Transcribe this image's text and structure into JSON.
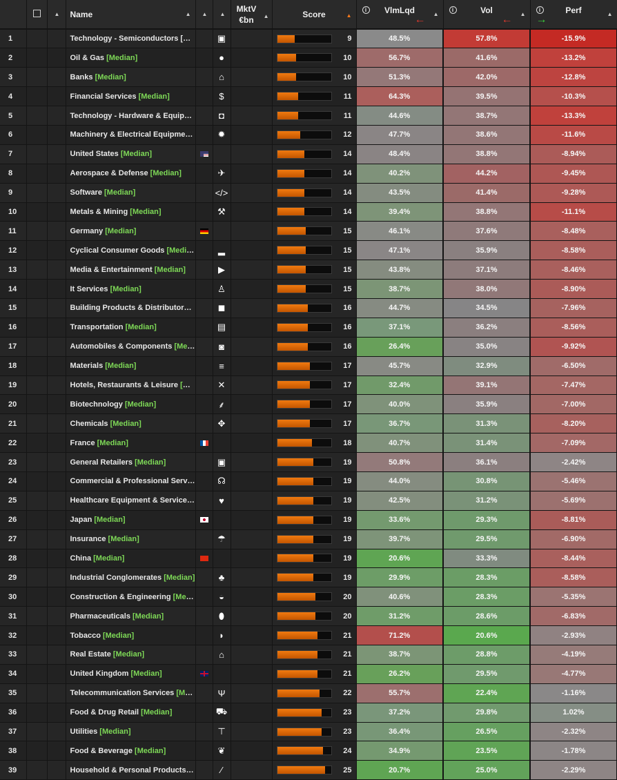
{
  "header": {
    "name": "Name",
    "mktv_line1": "MktV",
    "mktv_line2": "€bn",
    "score": "Score",
    "vimlqd": "VlmLqd",
    "vol": "Vol",
    "perf": "Perf",
    "info_glyph": "i",
    "sort_up": "▲",
    "sort_active": "▲",
    "arrow_left": "←",
    "arrow_right": "→"
  },
  "colors": {
    "red": "#c9302c",
    "green": "#5d9e3d",
    "neutral": "#8a8a8a",
    "median": "#7ed957",
    "score_bar": "#e06b0c"
  },
  "rows": [
    {
      "idx": "1",
      "name": "Technology - Semiconductors [Me…",
      "median": "",
      "flag": "",
      "icon": "chip-icon",
      "glyph": "▣",
      "score": 9,
      "vim": "48.5%",
      "vol": "57.8%",
      "perf": "-15.9%",
      "vimc": "#8a8a8a",
      "volc": "#c23b35",
      "perfc": "#c42a24"
    },
    {
      "idx": "2",
      "name": "Oil & Gas ",
      "median": "[Median]",
      "flag": "",
      "icon": "drop-icon",
      "glyph": "●",
      "score": 10,
      "vim": "56.7%",
      "vol": "41.6%",
      "perf": "-13.2%",
      "vimc": "#9e6b6a",
      "volc": "#9b6a68",
      "perfc": "#c0413c"
    },
    {
      "idx": "3",
      "name": "Banks ",
      "median": "[Median]",
      "flag": "",
      "icon": "bank-icon",
      "glyph": "⌂",
      "score": 10,
      "vim": "51.3%",
      "vol": "42.0%",
      "perf": "-12.8%",
      "vimc": "#947878",
      "volc": "#9d6968",
      "perfc": "#bd4440"
    },
    {
      "idx": "4",
      "name": "Financial Services ",
      "median": "[Median]",
      "flag": "",
      "icon": "piggy-bank-icon",
      "glyph": "$",
      "score": 11,
      "vim": "64.3%",
      "vol": "39.5%",
      "perf": "-10.3%",
      "vimc": "#ab5f5c",
      "volc": "#957373",
      "perfc": "#b5504c"
    },
    {
      "idx": "5",
      "name": "Technology - Hardware & Equipm…",
      "median": "",
      "flag": "",
      "icon": "mouse-icon",
      "glyph": "◘",
      "score": 11,
      "vim": "44.6%",
      "vol": "38.7%",
      "perf": "-13.3%",
      "vimc": "#848c84",
      "volc": "#937676",
      "perfc": "#c0413c"
    },
    {
      "idx": "6",
      "name": "Machinery & Electrical Equipment …",
      "median": "",
      "flag": "",
      "icon": "gear-icon",
      "glyph": "✹",
      "score": 12,
      "vim": "47.7%",
      "vol": "38.6%",
      "perf": "-11.6%",
      "vimc": "#8a8585",
      "volc": "#937676",
      "perfc": "#b94a46"
    },
    {
      "idx": "7",
      "name": "United States ",
      "median": "[Median]",
      "flag": "us",
      "icon": "",
      "glyph": "",
      "score": 14,
      "vim": "48.4%",
      "vol": "38.8%",
      "perf": "-8.94%",
      "vimc": "#8a8484",
      "volc": "#937676",
      "perfc": "#ab5b58"
    },
    {
      "idx": "8",
      "name": "Aerospace & Defense ",
      "median": "[Median]",
      "flag": "",
      "icon": "plane-icon",
      "glyph": "✈",
      "score": 14,
      "vim": "40.2%",
      "vol": "44.2%",
      "perf": "-9.45%",
      "vimc": "#7f927a",
      "volc": "#a26262",
      "perfc": "#ae5754"
    },
    {
      "idx": "9",
      "name": "Software ",
      "median": "[Median]",
      "flag": "",
      "icon": "code-icon",
      "glyph": "</>",
      "score": 14,
      "vim": "43.5%",
      "vol": "41.4%",
      "perf": "-9.28%",
      "vimc": "#848c80",
      "volc": "#9b6a68",
      "perfc": "#ad5956"
    },
    {
      "idx": "10",
      "name": "Metals & Mining ",
      "median": "[Median]",
      "flag": "",
      "icon": "pickaxe-icon",
      "glyph": "⚒",
      "score": 14,
      "vim": "39.4%",
      "vol": "38.8%",
      "perf": "-11.1%",
      "vimc": "#7e9478",
      "volc": "#937676",
      "perfc": "#b74c48"
    },
    {
      "idx": "11",
      "name": "Germany ",
      "median": "[Median]",
      "flag": "de",
      "icon": "",
      "glyph": "",
      "score": 15,
      "vim": "46.1%",
      "vol": "37.6%",
      "perf": "-8.48%",
      "vimc": "#888a85",
      "volc": "#8f7a7a",
      "perfc": "#a9605d"
    },
    {
      "idx": "12",
      "name": "Cyclical Consumer Goods ",
      "median": "[Median]",
      "flag": "",
      "icon": "shoe-icon",
      "glyph": "▂",
      "score": 15,
      "vim": "47.1%",
      "vol": "35.9%",
      "perf": "-8.58%",
      "vimc": "#8a8686",
      "volc": "#8a8080",
      "perfc": "#aa5e5b"
    },
    {
      "idx": "13",
      "name": "Media & Entertainment ",
      "median": "[Median]",
      "flag": "",
      "icon": "play-icon",
      "glyph": "▶",
      "score": 15,
      "vim": "43.8%",
      "vol": "37.1%",
      "perf": "-8.46%",
      "vimc": "#858c80",
      "volc": "#8d7c7c",
      "perfc": "#a9605d"
    },
    {
      "idx": "14",
      "name": "It Services ",
      "median": "[Median]",
      "flag": "",
      "icon": "it-person-icon",
      "glyph": "♙",
      "score": 15,
      "vim": "38.7%",
      "vol": "38.0%",
      "perf": "-8.90%",
      "vimc": "#7c9576",
      "volc": "#917878",
      "perfc": "#ab5b58"
    },
    {
      "idx": "15",
      "name": "Building Products & Distributors […",
      "median": "",
      "flag": "",
      "icon": "box-icon",
      "glyph": "◼",
      "score": 16,
      "vim": "44.7%",
      "vol": "34.5%",
      "perf": "-7.96%",
      "vimc": "#868b82",
      "volc": "#868586",
      "perfc": "#a6625f"
    },
    {
      "idx": "16",
      "name": "Transportation ",
      "median": "[Median]",
      "flag": "",
      "icon": "train-icon",
      "glyph": "▤",
      "score": 16,
      "vim": "37.1%",
      "vol": "36.2%",
      "perf": "-8.56%",
      "vimc": "#79987a",
      "volc": "#8b7f7f",
      "perfc": "#aa5e5b"
    },
    {
      "idx": "17",
      "name": "Automobiles & Components ",
      "median": "[Medi…",
      "flag": "",
      "icon": "tire-icon",
      "glyph": "◙",
      "score": 16,
      "vim": "26.4%",
      "vol": "35.0%",
      "perf": "-9.92%",
      "vimc": "#68a05a",
      "volc": "#888383",
      "perfc": "#b05452"
    },
    {
      "idx": "18",
      "name": "Materials ",
      "median": "[Median]",
      "flag": "",
      "icon": "beam-icon",
      "glyph": "≡",
      "score": 17,
      "vim": "45.7%",
      "vol": "32.9%",
      "perf": "-6.50%",
      "vimc": "#888a84",
      "volc": "#7f8c7f",
      "perfc": "#a06b69"
    },
    {
      "idx": "19",
      "name": "Hotels, Restaurants & Leisure ",
      "median": "[Me…",
      "flag": "",
      "icon": "utensils-icon",
      "glyph": "✕",
      "score": 17,
      "vim": "32.4%",
      "vol": "39.1%",
      "perf": "-7.47%",
      "vimc": "#719a6a",
      "volc": "#947575",
      "perfc": "#a46764"
    },
    {
      "idx": "20",
      "name": "Biotechnology ",
      "median": "[Median]",
      "flag": "",
      "icon": "dna-icon",
      "glyph": "⸙",
      "score": 17,
      "vim": "40.0%",
      "vol": "35.9%",
      "perf": "-7.00%",
      "vimc": "#7f927a",
      "volc": "#8a8080",
      "perfc": "#a26865"
    },
    {
      "idx": "21",
      "name": "Chemicals ",
      "median": "[Median]",
      "flag": "",
      "icon": "molecule-icon",
      "glyph": "✥",
      "score": 17,
      "vim": "36.7%",
      "vol": "31.3%",
      "perf": "-8.20%",
      "vimc": "#799778",
      "volc": "#7a9278",
      "perfc": "#a7615e"
    },
    {
      "idx": "22",
      "name": "France ",
      "median": "[Median]",
      "flag": "fr",
      "icon": "",
      "glyph": "",
      "score": 18,
      "vim": "40.7%",
      "vol": "31.4%",
      "perf": "-7.09%",
      "vimc": "#80917b",
      "volc": "#7a9278",
      "perfc": "#a36866"
    },
    {
      "idx": "23",
      "name": "General Retailers ",
      "median": "[Median]",
      "flag": "",
      "icon": "shopping-bag-icon",
      "glyph": "▣",
      "score": 19,
      "vim": "50.8%",
      "vol": "36.1%",
      "perf": "-2.42%",
      "vimc": "#937a7a",
      "volc": "#8b7f7f",
      "perfc": "#8e8585"
    },
    {
      "idx": "24",
      "name": "Commercial & Professional Servic…",
      "median": "",
      "flag": "",
      "icon": "headset-icon",
      "glyph": "☊",
      "score": 19,
      "vim": "44.0%",
      "vol": "30.8%",
      "perf": "-5.46%",
      "vimc": "#858c80",
      "volc": "#779475",
      "perfc": "#9b7371"
    },
    {
      "idx": "25",
      "name": "Healthcare Equipment & Services …",
      "median": "",
      "flag": "",
      "icon": "heart-plus-icon",
      "glyph": "♥",
      "score": 19,
      "vim": "42.5%",
      "vol": "31.2%",
      "perf": "-5.69%",
      "vimc": "#838e7e",
      "volc": "#7a9278",
      "perfc": "#9c716f"
    },
    {
      "idx": "26",
      "name": "Japan ",
      "median": "[Median]",
      "flag": "jp",
      "icon": "",
      "glyph": "",
      "score": 19,
      "vim": "33.6%",
      "vol": "29.3%",
      "perf": "-8.81%",
      "vimc": "#749a6f",
      "volc": "#6f9a6c",
      "perfc": "#aa5c59"
    },
    {
      "idx": "27",
      "name": "Insurance ",
      "median": "[Median]",
      "flag": "",
      "icon": "umbrella-icon",
      "glyph": "☂",
      "score": 19,
      "vim": "39.7%",
      "vol": "29.5%",
      "perf": "-6.90%",
      "vimc": "#7e9479",
      "volc": "#709a6d",
      "perfc": "#a26a67"
    },
    {
      "idx": "28",
      "name": "China ",
      "median": "[Median]",
      "flag": "cn",
      "icon": "",
      "glyph": "",
      "score": 19,
      "vim": "20.6%",
      "vol": "33.3%",
      "perf": "-8.44%",
      "vimc": "#5fa553",
      "volc": "#808b80",
      "perfc": "#a9605d"
    },
    {
      "idx": "29",
      "name": "Industrial Conglomerates ",
      "median": "[Median]",
      "flag": "",
      "icon": "org-chart-icon",
      "glyph": "♣",
      "score": 19,
      "vim": "29.9%",
      "vol": "28.3%",
      "perf": "-8.58%",
      "vimc": "#6d9d67",
      "volc": "#6b9d66",
      "perfc": "#aa5e5b"
    },
    {
      "idx": "30",
      "name": "Construction & Engineering ",
      "median": "[Median]",
      "flag": "",
      "icon": "helmet-icon",
      "glyph": "◒",
      "score": 20,
      "vim": "40.6%",
      "vol": "28.3%",
      "perf": "-5.35%",
      "vimc": "#80917b",
      "volc": "#6b9d66",
      "perfc": "#9b7472"
    },
    {
      "idx": "31",
      "name": "Pharmaceuticals ",
      "median": "[Median]",
      "flag": "",
      "icon": "pill-icon",
      "glyph": "⬮",
      "score": 20,
      "vim": "31.2%",
      "vol": "28.6%",
      "perf": "-6.83%",
      "vimc": "#6f9c69",
      "volc": "#6c9c68",
      "perfc": "#a16a68"
    },
    {
      "idx": "32",
      "name": "Tobacco ",
      "median": "[Median]",
      "flag": "",
      "icon": "pipe-icon",
      "glyph": "◗",
      "score": 21,
      "vim": "71.2%",
      "vol": "20.6%",
      "perf": "-2.93%",
      "vimc": "#b34f4c",
      "volc": "#5aa84e",
      "perfc": "#908282"
    },
    {
      "idx": "33",
      "name": "Real Estate ",
      "median": "[Median]",
      "flag": "",
      "icon": "home-icon",
      "glyph": "⌂",
      "score": 21,
      "vim": "38.7%",
      "vol": "28.8%",
      "perf": "-4.19%",
      "vimc": "#7c9576",
      "volc": "#6d9c69",
      "perfc": "#967b79"
    },
    {
      "idx": "34",
      "name": "United Kingdom ",
      "median": "[Median]",
      "flag": "uk",
      "icon": "",
      "glyph": "",
      "score": 21,
      "vim": "26.2%",
      "vol": "29.5%",
      "perf": "-4.77%",
      "vimc": "#68a05a",
      "volc": "#709a6d",
      "perfc": "#987876"
    },
    {
      "idx": "35",
      "name": "Telecommunication Services ",
      "median": "[Med…",
      "flag": "",
      "icon": "antenna-icon",
      "glyph": "Ψ",
      "score": 22,
      "vim": "55.7%",
      "vol": "22.4%",
      "perf": "-1.16%",
      "vimc": "#9c6f6e",
      "volc": "#5fa553",
      "perfc": "#8a8888"
    },
    {
      "idx": "36",
      "name": "Food & Drug Retail ",
      "median": "[Median]",
      "flag": "",
      "icon": "cart-icon",
      "glyph": "⛟",
      "score": 23,
      "vim": "37.2%",
      "vol": "29.8%",
      "perf": "1.02%",
      "vimc": "#7a967a",
      "volc": "#719a6e",
      "perfc": "#858e85"
    },
    {
      "idx": "37",
      "name": "Utilities ",
      "median": "[Median]",
      "flag": "",
      "icon": "faucet-icon",
      "glyph": "⊤",
      "score": 23,
      "vim": "36.4%",
      "vol": "26.5%",
      "perf": "-2.32%",
      "vimc": "#789777",
      "volc": "#66a060",
      "perfc": "#8e8585"
    },
    {
      "idx": "38",
      "name": "Food & Beverage ",
      "median": "[Median]",
      "flag": "",
      "icon": "wheat-icon",
      "glyph": "❦",
      "score": 24,
      "vim": "34.9%",
      "vol": "23.5%",
      "perf": "-1.78%",
      "vimc": "#759970",
      "volc": "#60a456",
      "perfc": "#8c8686"
    },
    {
      "idx": "39",
      "name": "Household & Personal Products […",
      "median": "",
      "flag": "",
      "icon": "spray-icon",
      "glyph": "⁄",
      "score": 25,
      "vim": "20.7%",
      "vol": "25.0%",
      "perf": "-2.29%",
      "vimc": "#5fa553",
      "volc": "#62a35a",
      "perfc": "#8e8585"
    }
  ]
}
